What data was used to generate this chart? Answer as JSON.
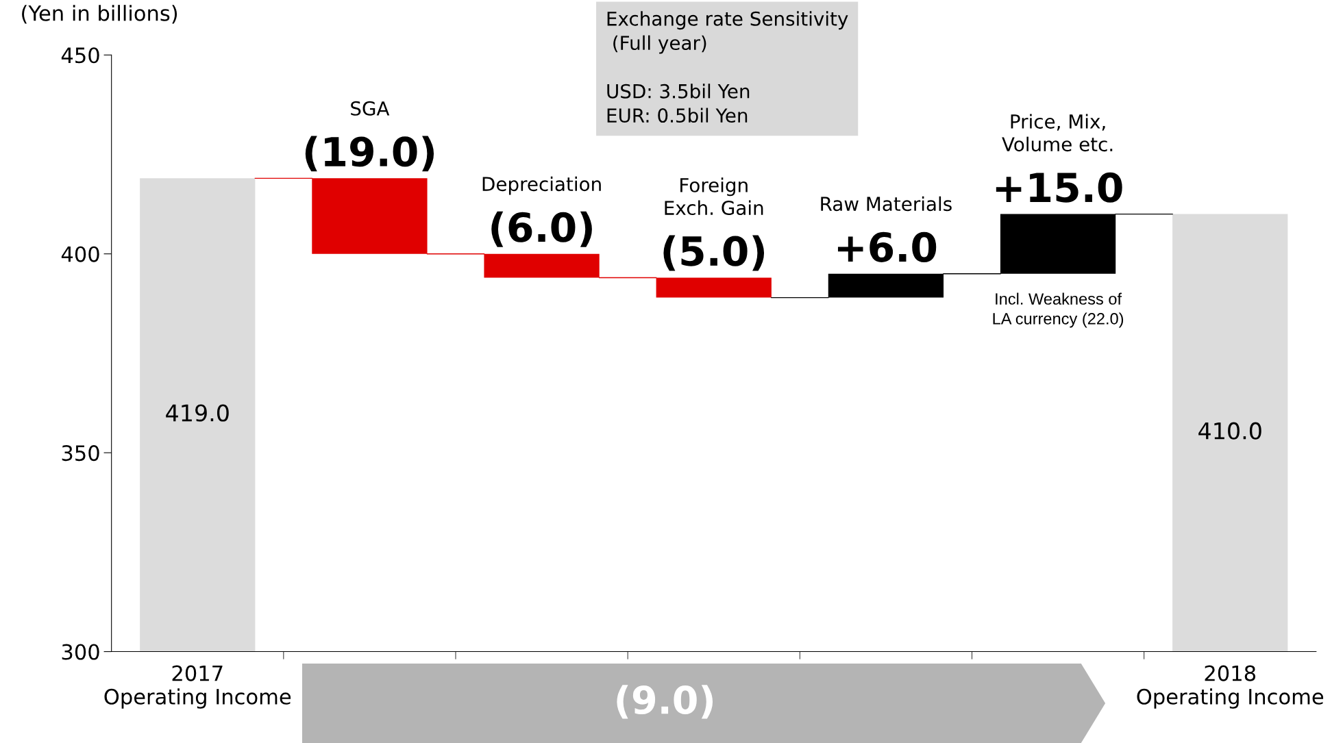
{
  "chart_data": {
    "type": "bar",
    "ylabel": "(Yen in billions)",
    "categories": [
      "2017\nOperating Income",
      "SGA",
      "Depreciation",
      "Foreign\nExch. Gain",
      "Raw Materials",
      "Price, Mix,\nVolume etc.",
      "2018\nOperating Income"
    ],
    "values": [
      419.0,
      -19.0,
      -6.0,
      -5.0,
      6.0,
      15.0,
      410.0
    ],
    "base": [
      0,
      419.0,
      400.0,
      394.0,
      389.0,
      395.0,
      0
    ],
    "colors": [
      "#dcdcdc",
      "#e00000",
      "#e00000",
      "#e00000",
      "#000000",
      "#000000",
      "#dcdcdc"
    ],
    "value_labels": [
      "419.0",
      "(19.0)",
      "(6.0)",
      "(5.0)",
      "+6.0",
      "+15.0",
      "410.0"
    ],
    "ylim": [
      300,
      450
    ],
    "yticks": [
      300,
      350,
      400,
      450
    ],
    "grid": false,
    "legend": false,
    "annotations": [
      "Exchange rate Sensitivity\n (Full year)\n\nUSD: 3.5bil Yen\nEUR: 0.5bil Yen",
      {
        "text": "Incl. Weakness of\nLA currency (22.0)",
        "x": "Price, Mix,\nVolume etc.",
        "y": 395.0
      },
      "(9.0)"
    ]
  }
}
